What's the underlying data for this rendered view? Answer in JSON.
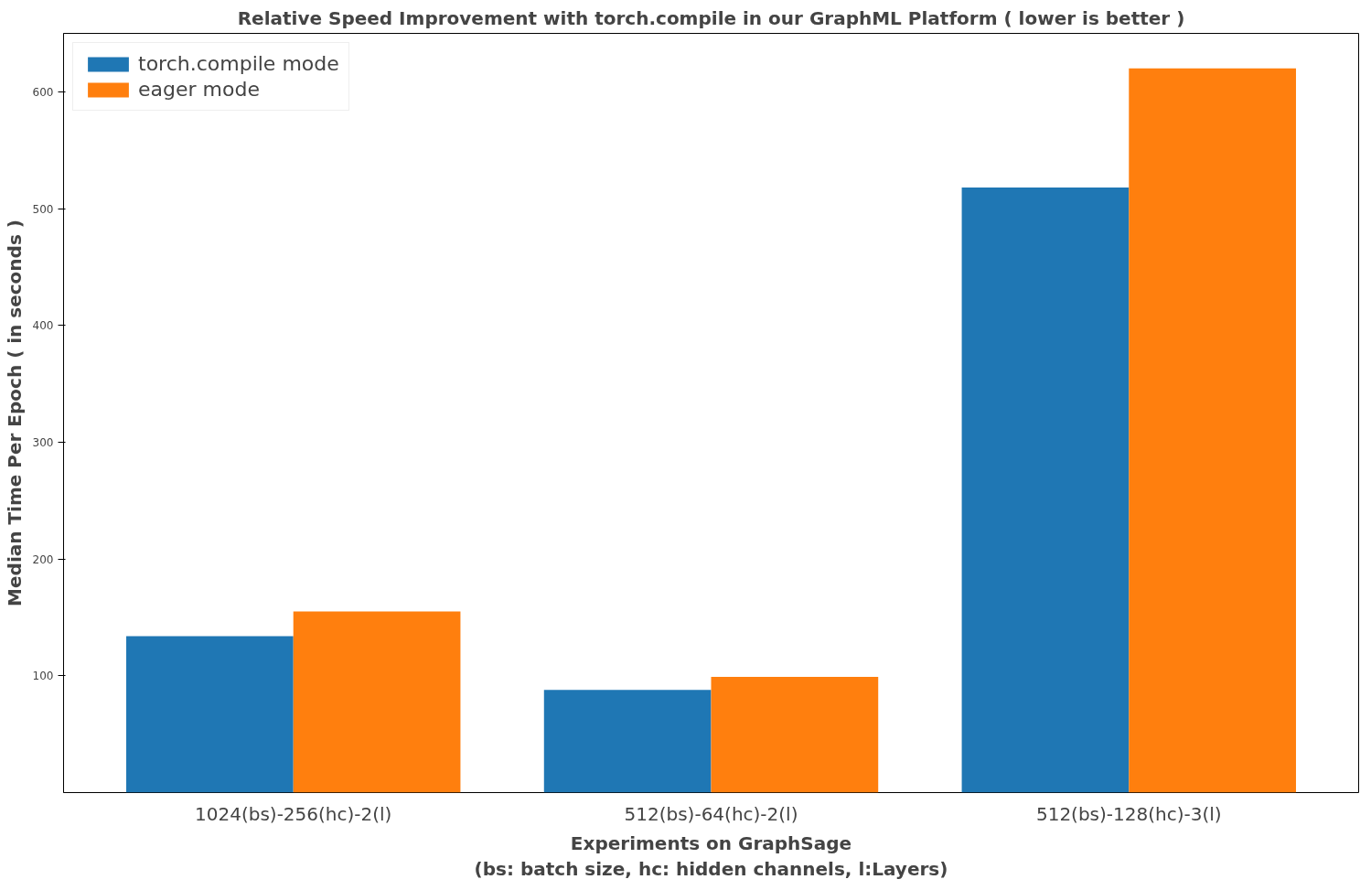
{
  "chart_data": {
    "type": "bar",
    "title": "Relative Speed Improvement with torch.compile in our GraphML Platform ( lower is better )",
    "xlabel": "Experiments on GraphSage\n(bs: batch size, hc: hidden channels, l:Layers)",
    "ylabel": "Median Time Per Epoch ( in seconds )",
    "categories": [
      "1024(bs)-256(hc)-2(l)",
      "512(bs)-64(hc)-2(l)",
      "512(bs)-128(hc)-3(l)"
    ],
    "series": [
      {
        "name": "torch.compile mode",
        "color": "#1f77b4",
        "values": [
          134,
          88,
          518
        ]
      },
      {
        "name": "eager mode",
        "color": "#ff7f0e",
        "values": [
          155,
          99,
          620
        ]
      }
    ],
    "ylim": [
      0,
      650
    ],
    "yticks": [
      100,
      200,
      300,
      400,
      500,
      600
    ],
    "grid": false,
    "legend": "top left"
  }
}
